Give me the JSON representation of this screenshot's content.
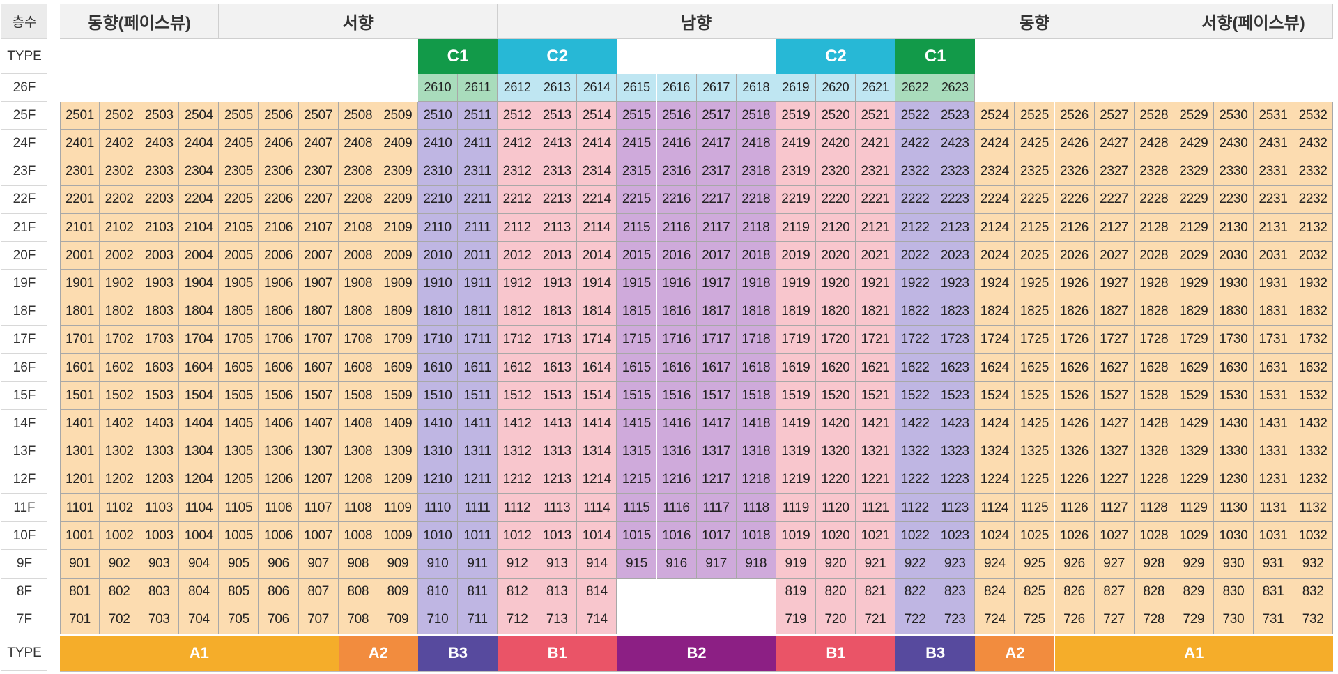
{
  "header_label": "층수",
  "type_label": "TYPE",
  "directions": [
    {
      "label": "동향(페이스뷰)",
      "start": 0,
      "span": 4
    },
    {
      "label": "서향",
      "start": 4,
      "span": 7
    },
    {
      "label": "남향",
      "start": 11,
      "span": 10
    },
    {
      "label": "동향",
      "start": 21,
      "span": 7
    },
    {
      "label": "서향(페이스뷰)",
      "start": 28,
      "span": 4
    }
  ],
  "top_types": [
    {
      "label": "C1",
      "start": 9,
      "span": 2,
      "color": "#129a49"
    },
    {
      "label": "C2",
      "start": 11,
      "span": 3,
      "color": "#27b8d6"
    },
    {
      "label": "C2",
      "start": 18,
      "span": 3,
      "color": "#27b8d6"
    },
    {
      "label": "C1",
      "start": 21,
      "span": 2,
      "color": "#129a49"
    }
  ],
  "bottom_types": [
    {
      "label": "A1",
      "start": 0,
      "span": 7,
      "color": "#f5ad2a"
    },
    {
      "label": "A2",
      "start": 7,
      "span": 2,
      "color": "#f28c3e"
    },
    {
      "label": "B3",
      "start": 9,
      "span": 2,
      "color": "#574a9e"
    },
    {
      "label": "B1",
      "start": 11,
      "span": 3,
      "color": "#ea5467"
    },
    {
      "label": "B2",
      "start": 14,
      "span": 4,
      "color": "#8c1f84"
    },
    {
      "label": "B1",
      "start": 18,
      "span": 3,
      "color": "#ea5467"
    },
    {
      "label": "B3",
      "start": 21,
      "span": 2,
      "color": "#574a9e"
    },
    {
      "label": "A2",
      "start": 23,
      "span": 2,
      "color": "#f28c3e"
    },
    {
      "label": "A1",
      "start": 25,
      "span": 7,
      "color": "#f5ad2a"
    }
  ],
  "column_units": [
    "01",
    "02",
    "03",
    "04",
    "05",
    "06",
    "07",
    "08",
    "09",
    "10",
    "11",
    "12",
    "13",
    "14",
    "15",
    "16",
    "17",
    "18",
    "19",
    "20",
    "21",
    "22",
    "23",
    "24",
    "25",
    "26",
    "27",
    "28",
    "29",
    "30",
    "31",
    "32"
  ],
  "column_fill_colors": [
    "#fcdcb0",
    "#fcdcb0",
    "#fcdcb0",
    "#fcdcb0",
    "#fcdcb0",
    "#fcdcb0",
    "#fcdcb0",
    "#fcdcb0",
    "#fcdcb0",
    "#bfb6e3",
    "#bfb6e3",
    "#f8c6cd",
    "#f8c6cd",
    "#f8c6cd",
    "#cfaadb",
    "#cfaadb",
    "#cfaadb",
    "#cfaadb",
    "#f8c6cd",
    "#f8c6cd",
    "#f8c6cd",
    "#bfb6e3",
    "#bfb6e3",
    "#fcdcb0",
    "#fcdcb0",
    "#fcdcb0",
    "#fcdcb0",
    "#fcdcb0",
    "#fcdcb0",
    "#fcdcb0",
    "#fcdcb0",
    "#fcdcb0"
  ],
  "top_floor_colors": {
    "c1": "#a9dcbc",
    "c2": "#bfe6f2"
  },
  "floors": [
    {
      "label": "26F",
      "number": 26,
      "present": [
        9,
        10,
        11,
        12,
        13,
        14,
        15,
        16,
        17,
        18,
        19,
        20,
        21,
        22
      ]
    },
    {
      "label": "25F",
      "number": 25,
      "present": "all"
    },
    {
      "label": "24F",
      "number": 24,
      "present": "all"
    },
    {
      "label": "23F",
      "number": 23,
      "present": "all"
    },
    {
      "label": "22F",
      "number": 22,
      "present": "all"
    },
    {
      "label": "21F",
      "number": 21,
      "present": "all"
    },
    {
      "label": "20F",
      "number": 20,
      "present": "all"
    },
    {
      "label": "19F",
      "number": 19,
      "present": "all"
    },
    {
      "label": "18F",
      "number": 18,
      "present": "all"
    },
    {
      "label": "17F",
      "number": 17,
      "present": "all"
    },
    {
      "label": "16F",
      "number": 16,
      "present": "all"
    },
    {
      "label": "15F",
      "number": 15,
      "present": "all"
    },
    {
      "label": "14F",
      "number": 14,
      "present": "all"
    },
    {
      "label": "13F",
      "number": 13,
      "present": "all"
    },
    {
      "label": "12F",
      "number": 12,
      "present": "all"
    },
    {
      "label": "11F",
      "number": 11,
      "present": "all"
    },
    {
      "label": "10F",
      "number": 10,
      "present": "all"
    },
    {
      "label": "9F",
      "number": 9,
      "present": "all"
    },
    {
      "label": "8F",
      "number": 8,
      "present": [
        0,
        1,
        2,
        3,
        4,
        5,
        6,
        7,
        8,
        9,
        10,
        11,
        12,
        13,
        18,
        19,
        20,
        21,
        22,
        23,
        24,
        25,
        26,
        27,
        28,
        29,
        30,
        31
      ]
    },
    {
      "label": "7F",
      "number": 7,
      "present": [
        0,
        1,
        2,
        3,
        4,
        5,
        6,
        7,
        8,
        9,
        10,
        11,
        12,
        13,
        18,
        19,
        20,
        21,
        22,
        23,
        24,
        25,
        26,
        27,
        28,
        29,
        30,
        31
      ]
    }
  ]
}
